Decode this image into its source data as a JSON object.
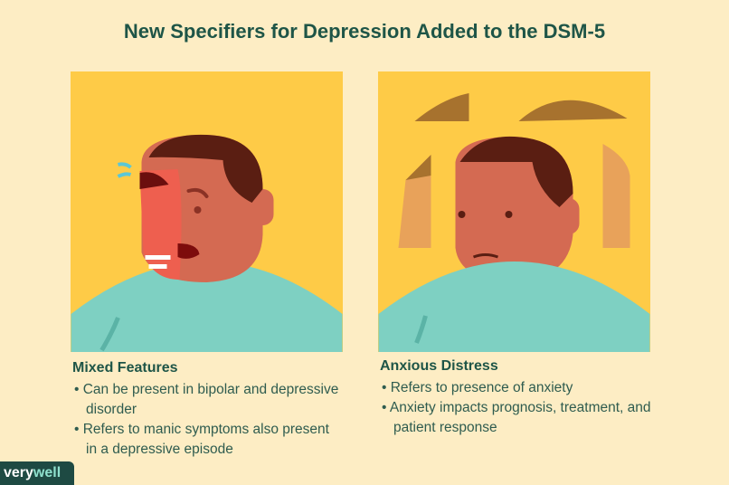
{
  "title": "New Specifiers for Depression Added to the DSM-5",
  "panels": [
    {
      "heading": "Mixed Features",
      "bullets": [
        "Can be present in bipolar and depressive disorder",
        "Refers to manic symptoms also present in a depressive episode"
      ]
    },
    {
      "heading": "Anxious Distress",
      "bullets": [
        "Refers to presence of anxiety",
        "Anxiety impacts prognosis, treatment, and patient response"
      ]
    }
  ],
  "logo": {
    "part1": "very",
    "part2": "well"
  },
  "colors": {
    "background": "#fdedc4",
    "panel": "#fecb47",
    "shirt": "#7ed0c2",
    "skin": "#d46a52",
    "hair": "#5a1e12",
    "heading": "#1e5547"
  }
}
